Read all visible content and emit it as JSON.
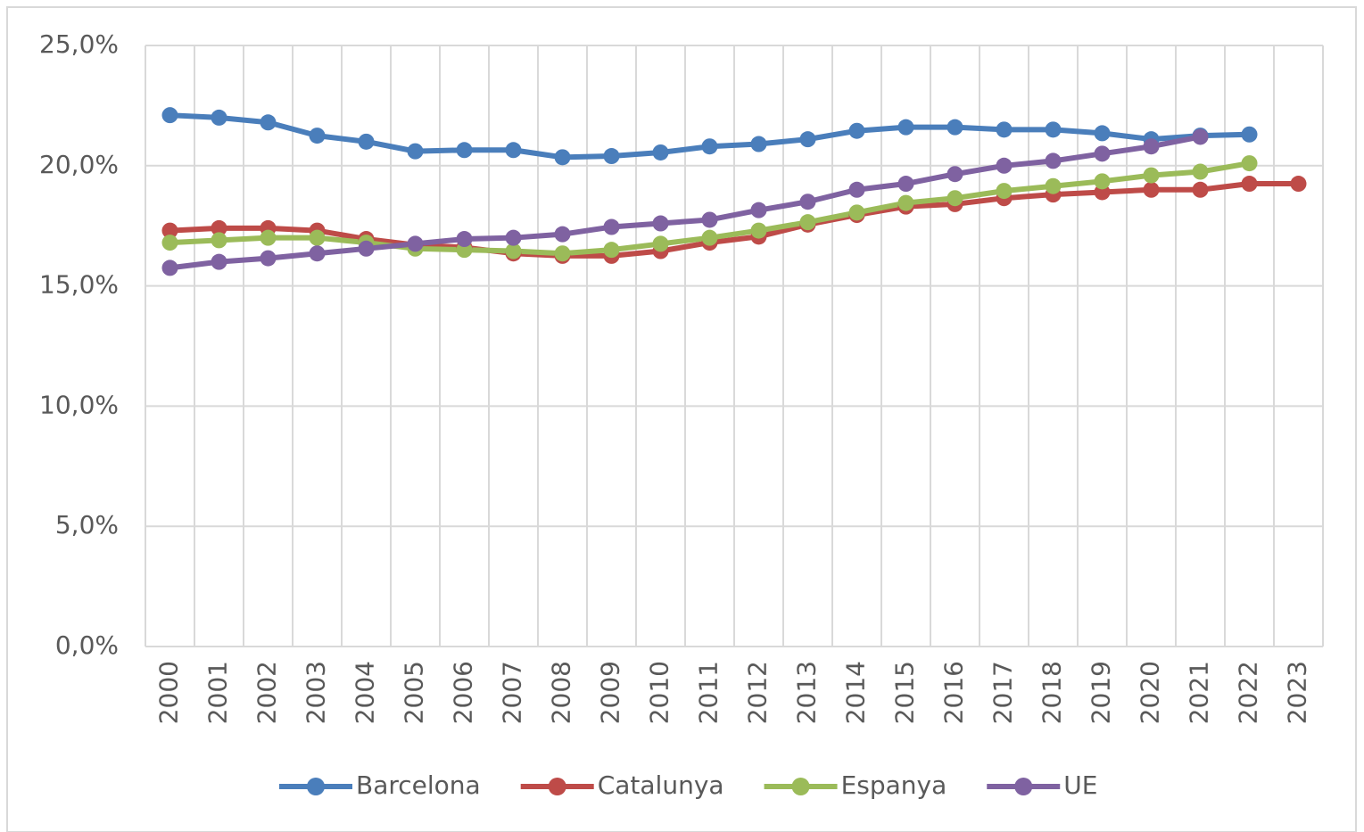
{
  "chart_data": {
    "type": "line",
    "categories": [
      "2000",
      "2001",
      "2002",
      "2003",
      "2004",
      "2005",
      "2006",
      "2007",
      "2008",
      "2009",
      "2010",
      "2011",
      "2012",
      "2013",
      "2014",
      "2015",
      "2016",
      "2017",
      "2018",
      "2019",
      "2020",
      "2021",
      "2022",
      "2023"
    ],
    "series": [
      {
        "name": "Barcelona",
        "color": "#4a7ebb",
        "values": [
          22.1,
          22.0,
          21.8,
          21.25,
          21.0,
          20.6,
          20.65,
          20.65,
          20.35,
          20.4,
          20.55,
          20.8,
          20.9,
          21.1,
          21.45,
          21.6,
          21.6,
          21.5,
          21.5,
          21.35,
          21.1,
          21.25,
          21.3,
          null
        ]
      },
      {
        "name": "Catalunya",
        "color": "#be4b48",
        "values": [
          17.3,
          17.4,
          17.4,
          17.3,
          16.95,
          16.7,
          16.6,
          16.35,
          16.25,
          16.25,
          16.45,
          16.8,
          17.05,
          17.55,
          17.95,
          18.3,
          18.4,
          18.65,
          18.8,
          18.9,
          19.0,
          19.0,
          19.25,
          19.25
        ]
      },
      {
        "name": "Espanya",
        "color": "#9bbb59",
        "values": [
          16.8,
          16.9,
          17.0,
          17.0,
          16.8,
          16.55,
          16.5,
          16.45,
          16.35,
          16.5,
          16.75,
          17.0,
          17.3,
          17.65,
          18.05,
          18.45,
          18.65,
          18.95,
          19.15,
          19.35,
          19.6,
          19.75,
          20.1,
          null
        ]
      },
      {
        "name": "UE",
        "color": "#7f62a1",
        "values": [
          15.75,
          16.0,
          16.15,
          16.35,
          16.55,
          16.75,
          16.95,
          17.0,
          17.15,
          17.45,
          17.6,
          17.75,
          18.15,
          18.5,
          19.0,
          19.25,
          19.65,
          20.0,
          20.2,
          20.5,
          20.8,
          21.2,
          null,
          null
        ]
      }
    ],
    "ylim": [
      0,
      25
    ],
    "yticks": [
      {
        "value": 0,
        "label": "0,0%"
      },
      {
        "value": 5,
        "label": "5,0%"
      },
      {
        "value": 10,
        "label": "10,0%"
      },
      {
        "value": 15,
        "label": "15,0%"
      },
      {
        "value": 20,
        "label": "20,0%"
      },
      {
        "value": 25,
        "label": "25,0%"
      }
    ],
    "grid": true,
    "legend": "bottom"
  }
}
